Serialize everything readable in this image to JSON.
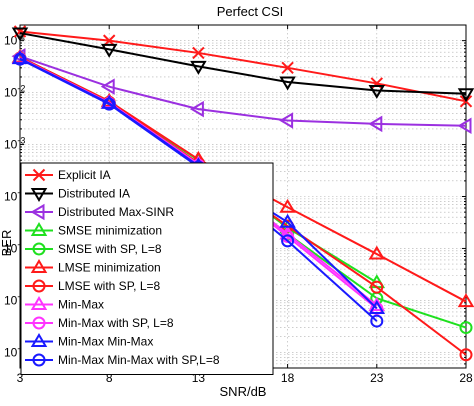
{
  "chart_data": {
    "type": "line",
    "title": "Perfect CSI",
    "xlabel": "SNR/dB",
    "ylabel": "BER",
    "x": [
      3,
      8,
      13,
      18,
      23,
      28
    ],
    "xlim": [
      3,
      28
    ],
    "ylim": [
      5e-08,
      0.2
    ],
    "yscale": "log",
    "grid": true,
    "legend_position": "bottom-left",
    "x_tick_labels": [
      "3",
      "8",
      "13",
      "18",
      "23",
      "28"
    ],
    "y_ticks": [
      {
        "value": 1e-07,
        "base": "10",
        "exp": "-7"
      },
      {
        "value": 1e-06,
        "base": "10",
        "exp": "-6"
      },
      {
        "value": 1e-05,
        "base": "10",
        "exp": "-5"
      },
      {
        "value": 0.0001,
        "base": "10",
        "exp": "-4"
      },
      {
        "value": 0.001,
        "base": "10",
        "exp": "-3"
      },
      {
        "value": 0.01,
        "base": "10",
        "exp": "-2"
      },
      {
        "value": 0.1,
        "base": "10",
        "exp": "-1"
      }
    ],
    "series": [
      {
        "name": "Explicit IA",
        "color": "#ff1a1a",
        "marker": "x",
        "x": [
          3,
          8,
          13,
          18,
          23,
          28
        ],
        "values": [
          0.15,
          0.1,
          0.058,
          0.03,
          0.015,
          0.0068
        ]
      },
      {
        "name": "Distributed IA",
        "color": "#000000",
        "marker": "triangle-down",
        "x": [
          3,
          8,
          13,
          18,
          23,
          28
        ],
        "values": [
          0.14,
          0.068,
          0.032,
          0.016,
          0.011,
          0.0095
        ]
      },
      {
        "name": "Distributed Max-SINR",
        "color": "#9b30e0",
        "marker": "triangle-left",
        "x": [
          3,
          8,
          13,
          18,
          23,
          28
        ],
        "values": [
          0.05,
          0.013,
          0.0048,
          0.0029,
          0.0025,
          0.0023
        ]
      },
      {
        "name": "SMSE minimization",
        "color": "#1fe01f",
        "marker": "triangle-up",
        "x": [
          3,
          8,
          13,
          18,
          23
        ],
        "values": [
          0.048,
          0.0068,
          0.0005,
          2.5e-05,
          2.2e-06
        ]
      },
      {
        "name": "SMSE with SP, L=8",
        "color": "#1fe01f",
        "marker": "circle",
        "x": [
          3,
          8,
          13,
          18,
          23,
          28
        ],
        "values": [
          0.046,
          0.0065,
          0.00042,
          1.9e-05,
          1.1e-06,
          3e-07
        ]
      },
      {
        "name": "LMSE minimization",
        "color": "#ff1a1a",
        "marker": "triangle-up",
        "x": [
          3,
          8,
          13,
          18,
          23,
          28
        ],
        "values": [
          0.048,
          0.0068,
          0.00052,
          6.2e-05,
          7.8e-06,
          9.5e-07
        ]
      },
      {
        "name": "LMSE with SP, L=8",
        "color": "#ff1a1a",
        "marker": "circle",
        "x": [
          3,
          8,
          13,
          18,
          23,
          28
        ],
        "values": [
          0.046,
          0.0065,
          0.00044,
          2.7e-05,
          1.8e-06,
          9e-08
        ]
      },
      {
        "name": "Min-Max",
        "color": "#ff33ff",
        "marker": "triangle-up",
        "x": [
          3,
          8,
          13,
          18,
          23
        ],
        "values": [
          0.046,
          0.0064,
          0.00042,
          1.9e-05,
          8e-07
        ]
      },
      {
        "name": "Min-Max with SP, L=8",
        "color": "#ff33ff",
        "marker": "circle",
        "x": [
          3,
          8,
          13,
          18,
          23
        ],
        "values": [
          0.045,
          0.0062,
          0.0004,
          1.7e-05,
          7e-07
        ]
      },
      {
        "name": "Min-Max Min-Max",
        "color": "#1a1aff",
        "marker": "triangle-up",
        "x": [
          3,
          8,
          13,
          18,
          23
        ],
        "values": [
          0.045,
          0.0062,
          0.00039,
          3.2e-05,
          7e-07
        ]
      },
      {
        "name": "Min-Max Min-Max with SP,L=8",
        "color": "#1a1aff",
        "marker": "circle",
        "x": [
          3,
          8,
          13,
          18,
          23
        ],
        "values": [
          0.044,
          0.006,
          0.00037,
          1.4e-05,
          4e-07
        ]
      }
    ]
  }
}
